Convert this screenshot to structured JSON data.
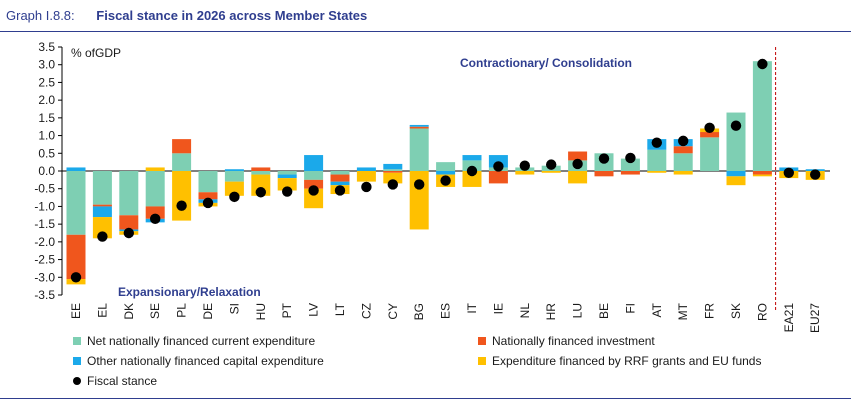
{
  "header": {
    "number": "Graph I.8.8:",
    "title": "Fiscal stance in 2026 across Member States"
  },
  "chart_data": {
    "type": "bar",
    "stacked": true,
    "ylabel": "% ofGDP",
    "ylim": [
      -3.5,
      3.5
    ],
    "yticks": [
      "3.5",
      "3.0",
      "2.5",
      "2.0",
      "1.5",
      "1.0",
      "0.5",
      "0.0",
      "-0.5",
      "-1.0",
      "-1.5",
      "-2.0",
      "-2.5",
      "-3.0",
      "-3.5"
    ],
    "categories": [
      "EE",
      "EL",
      "DK",
      "SE",
      "PL",
      "DE",
      "SI",
      "HU",
      "PT",
      "LV",
      "LT",
      "CZ",
      "CY",
      "BG",
      "ES",
      "IT",
      "IE",
      "NL",
      "HR",
      "LU",
      "BE",
      "FI",
      "AT",
      "MT",
      "FR",
      "SK",
      "RO",
      "EA21",
      "EU27"
    ],
    "annotations": {
      "upper": "Contractionary/ Consolidation",
      "lower": "Expansionary/Relaxation"
    },
    "colors": {
      "current": "#7ecfb3",
      "investment": "#f0561d",
      "other_capital": "#1ba9ea",
      "rrf": "#ffc000",
      "stance": "#000000",
      "divider": "#c00000"
    },
    "series": [
      {
        "name": "Net nationally financed current expenditure",
        "key": "current",
        "values": [
          -1.8,
          -0.95,
          -1.25,
          -1.0,
          0.5,
          -0.6,
          -0.3,
          -0.1,
          -0.1,
          -0.25,
          -0.1,
          0.0,
          0.05,
          1.2,
          0.25,
          0.3,
          0.1,
          0.1,
          0.15,
          0.3,
          0.5,
          0.35,
          0.6,
          0.5,
          0.95,
          1.65,
          3.1,
          0.0,
          0.0
        ]
      },
      {
        "name": "Nationally financed investment",
        "key": "investment",
        "values": [
          -1.25,
          -0.05,
          -0.4,
          -0.35,
          0.4,
          -0.2,
          0.0,
          0.1,
          0.0,
          -0.25,
          -0.2,
          0.0,
          -0.05,
          0.05,
          0.0,
          0.0,
          -0.35,
          0.0,
          0.0,
          0.25,
          -0.15,
          -0.1,
          0.0,
          0.2,
          0.15,
          0.0,
          -0.1,
          0.0,
          0.0
        ]
      },
      {
        "name": "Other nationally financed capital expenditure",
        "key": "other_capital",
        "values": [
          0.1,
          -0.3,
          -0.05,
          -0.1,
          0.0,
          -0.1,
          0.05,
          0.0,
          -0.1,
          0.45,
          -0.1,
          0.1,
          0.15,
          0.05,
          -0.1,
          0.15,
          0.35,
          0.0,
          0.0,
          0.0,
          0.0,
          0.0,
          0.3,
          0.2,
          0.0,
          -0.15,
          0.0,
          0.1,
          0.05
        ]
      },
      {
        "name": "Expenditure financed by RRF grants and EU funds",
        "key": "rrf",
        "values": [
          -0.15,
          -0.6,
          -0.1,
          0.1,
          -1.4,
          -0.1,
          -0.4,
          -0.6,
          -0.35,
          -0.55,
          -0.25,
          -0.3,
          -0.3,
          -1.65,
          -0.35,
          -0.45,
          0.0,
          -0.1,
          -0.05,
          -0.35,
          0.0,
          0.0,
          -0.05,
          -0.1,
          0.1,
          -0.25,
          -0.05,
          -0.2,
          -0.25
        ]
      }
    ],
    "stance": {
      "name": "Fiscal stance",
      "values": [
        -3.0,
        -1.85,
        -1.75,
        -1.35,
        -0.98,
        -0.9,
        -0.73,
        -0.6,
        -0.58,
        -0.55,
        -0.55,
        -0.45,
        -0.38,
        -0.38,
        -0.27,
        0.0,
        0.13,
        0.15,
        0.18,
        0.2,
        0.35,
        0.37,
        0.8,
        0.85,
        1.22,
        1.28,
        3.02,
        -0.05,
        -0.1
      ]
    }
  }
}
